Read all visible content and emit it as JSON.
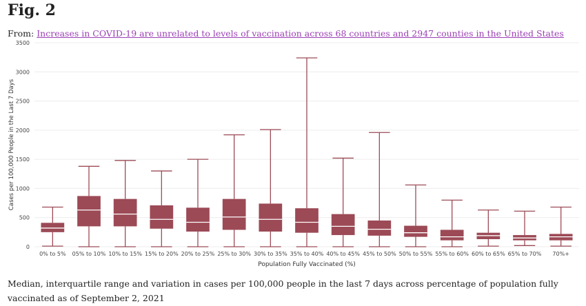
{
  "figure": {
    "label": "Fig. 2",
    "from_prefix": "From:",
    "source_title": "Increases in COVID-19 are unrelated to levels of vaccination across 68 countries and 2947 counties in the United States",
    "caption": "Median, interquartile range and variation in cases per 100,000 people in the last 7 days across percentage of population fully vaccinated as of September 2, 2021"
  },
  "chart_data": {
    "type": "boxplot",
    "xlabel": "Population Fully Vaccinated (%)",
    "ylabel": "Cases per 100,000 People in the Last 7 Days",
    "ylim": [
      0,
      3500
    ],
    "yticks": [
      0,
      500,
      1000,
      1500,
      2000,
      2500,
      3000,
      3500
    ],
    "grid": true,
    "box_color": "#9c4a56",
    "categories": [
      "0% to 5%",
      "05% to 10%",
      "10% to 15%",
      "15% to 20%",
      "20% to 25%",
      "25% to 30%",
      "30% to 35%",
      "35% to 40%",
      "40% to 45%",
      "45% to 50%",
      "50% to 55%",
      "55% to 60%",
      "60% to 65%",
      "65% to 70%",
      "70%+"
    ],
    "boxes": [
      {
        "min": 10,
        "q1": 250,
        "median": 320,
        "q3": 410,
        "max": 680
      },
      {
        "min": 0,
        "q1": 350,
        "median": 630,
        "q3": 870,
        "max": 1380
      },
      {
        "min": 0,
        "q1": 350,
        "median": 560,
        "q3": 820,
        "max": 1480
      },
      {
        "min": 0,
        "q1": 310,
        "median": 470,
        "q3": 710,
        "max": 1300
      },
      {
        "min": 0,
        "q1": 260,
        "median": 420,
        "q3": 670,
        "max": 1500
      },
      {
        "min": 0,
        "q1": 290,
        "median": 510,
        "q3": 820,
        "max": 1920
      },
      {
        "min": 0,
        "q1": 260,
        "median": 470,
        "q3": 740,
        "max": 2010
      },
      {
        "min": 0,
        "q1": 240,
        "median": 420,
        "q3": 660,
        "max": 3240
      },
      {
        "min": 0,
        "q1": 200,
        "median": 350,
        "q3": 560,
        "max": 1520
      },
      {
        "min": 0,
        "q1": 190,
        "median": 300,
        "q3": 450,
        "max": 1960
      },
      {
        "min": 0,
        "q1": 170,
        "median": 240,
        "q3": 360,
        "max": 1060
      },
      {
        "min": 0,
        "q1": 110,
        "median": 170,
        "q3": 290,
        "max": 800
      },
      {
        "min": 10,
        "q1": 130,
        "median": 190,
        "q3": 240,
        "max": 630
      },
      {
        "min": 20,
        "q1": 110,
        "median": 150,
        "q3": 200,
        "max": 610
      },
      {
        "min": 10,
        "q1": 110,
        "median": 170,
        "q3": 220,
        "max": 680
      }
    ]
  }
}
